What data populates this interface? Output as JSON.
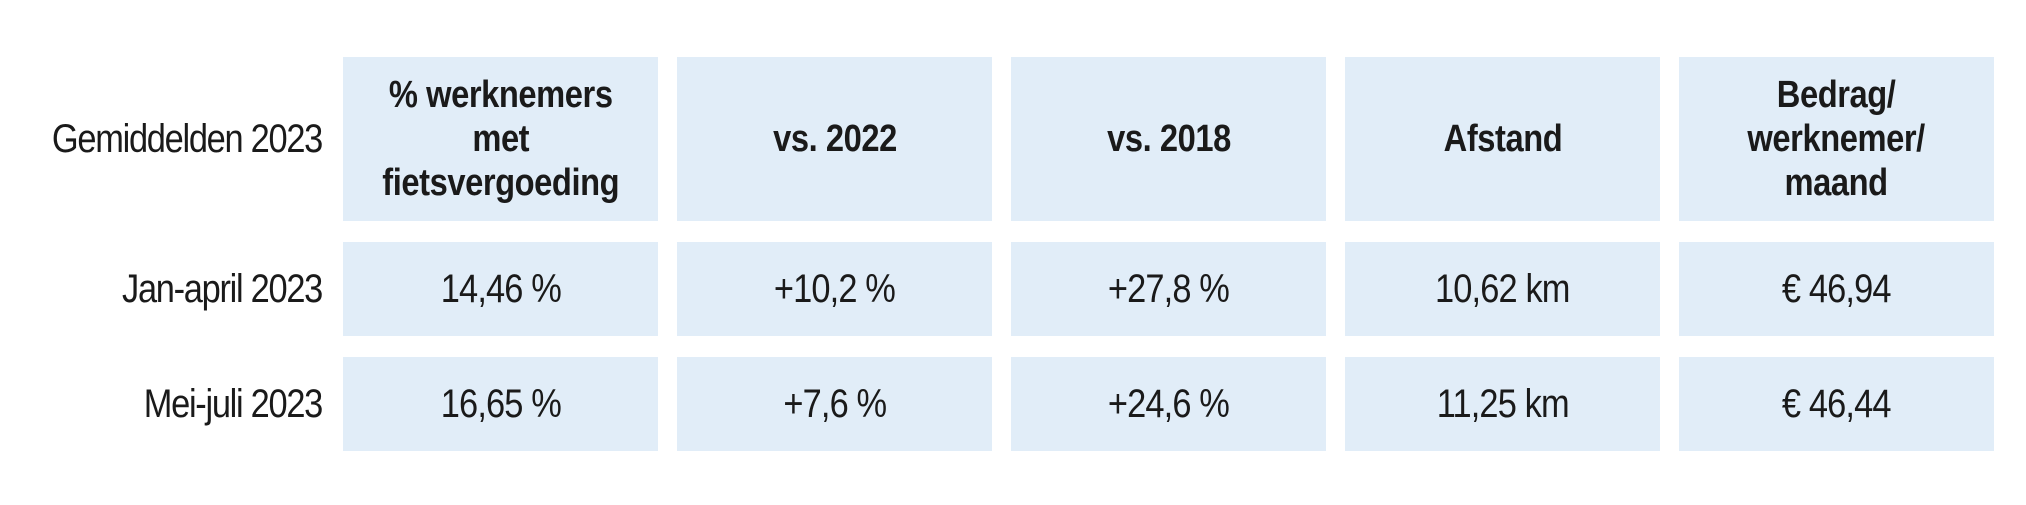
{
  "chart_data": {
    "type": "table",
    "corner_label": "Gemiddelden 2023",
    "columns": [
      "% werknemers met fietsvergoeding",
      "vs. 2022",
      "vs. 2018",
      "Afstand",
      "Bedrag/ werknemer/ maand"
    ],
    "columns_lines": [
      [
        "% werknemers",
        "met",
        "fietsvergoeding"
      ],
      [
        "vs. 2022"
      ],
      [
        "vs. 2018"
      ],
      [
        "Afstand"
      ],
      [
        "Bedrag/",
        "werknemer/",
        "maand"
      ]
    ],
    "rows": [
      {
        "label": "Jan-april 2023",
        "cells": [
          "14,46 %",
          "+10,2 %",
          "+27,8 %",
          "10,62 km",
          "€ 46,94"
        ]
      },
      {
        "label": "Mei-juli 2023",
        "cells": [
          "16,65 %",
          "+7,6 %",
          "+24,6 %",
          "11,25 km",
          "€ 46,44"
        ]
      }
    ]
  },
  "colors": {
    "cell_background": "#e1edf8",
    "text": "#1a1a1a"
  }
}
